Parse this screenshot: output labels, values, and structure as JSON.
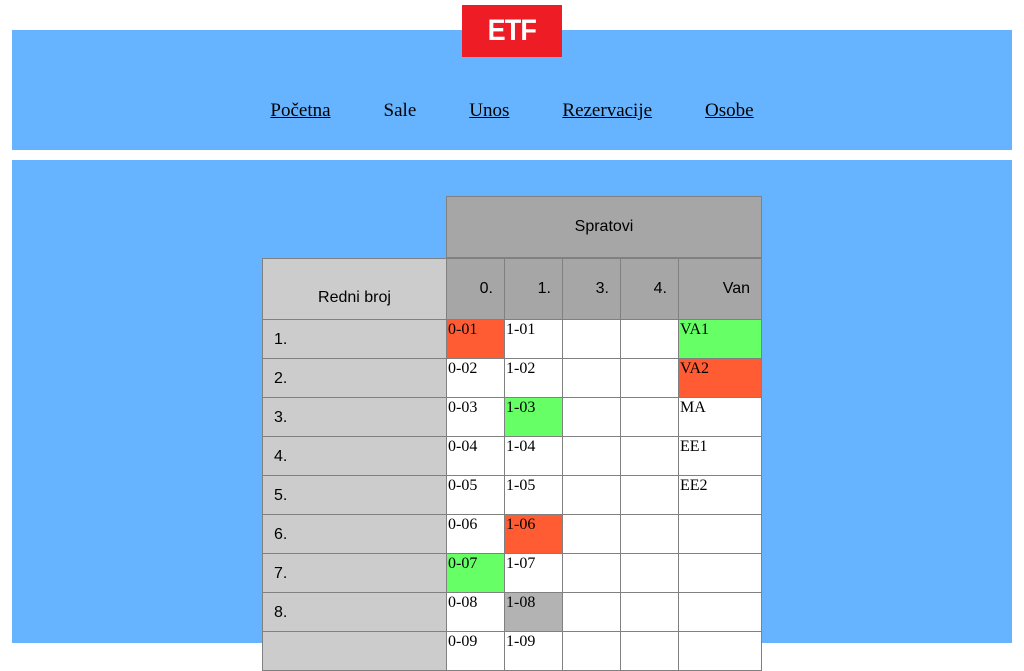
{
  "logo": {
    "text": "ETF",
    "color": "#ee1c25"
  },
  "nav": {
    "items": [
      {
        "label": "Početna",
        "link": true
      },
      {
        "label": "Sale",
        "link": false
      },
      {
        "label": "Unos",
        "link": true
      },
      {
        "label": "Rezervacije",
        "link": true
      },
      {
        "label": "Osobe",
        "link": true
      }
    ]
  },
  "table": {
    "group_header": "Spratovi",
    "row_header": "Redni broj",
    "floors": [
      "0.",
      "1.",
      "3.",
      "4.",
      "Van"
    ],
    "colors": {
      "red": "#ff5c33",
      "green": "#66ff66",
      "gray": "#b3b3b3"
    },
    "rows": [
      {
        "num": "1.",
        "cells": [
          {
            "text": "0-01",
            "status": "red"
          },
          {
            "text": "1-01"
          },
          {
            "text": ""
          },
          {
            "text": ""
          },
          {
            "text": "VA1",
            "status": "green"
          }
        ]
      },
      {
        "num": "2.",
        "cells": [
          {
            "text": "0-02"
          },
          {
            "text": "1-02"
          },
          {
            "text": ""
          },
          {
            "text": ""
          },
          {
            "text": "VA2",
            "status": "red"
          }
        ]
      },
      {
        "num": "3.",
        "cells": [
          {
            "text": "0-03"
          },
          {
            "text": "1-03",
            "status": "green"
          },
          {
            "text": ""
          },
          {
            "text": ""
          },
          {
            "text": "MA"
          }
        ]
      },
      {
        "num": "4.",
        "cells": [
          {
            "text": "0-04"
          },
          {
            "text": "1-04"
          },
          {
            "text": ""
          },
          {
            "text": ""
          },
          {
            "text": "EE1"
          }
        ]
      },
      {
        "num": "5.",
        "cells": [
          {
            "text": "0-05"
          },
          {
            "text": "1-05"
          },
          {
            "text": ""
          },
          {
            "text": ""
          },
          {
            "text": "EE2"
          }
        ]
      },
      {
        "num": "6.",
        "cells": [
          {
            "text": "0-06"
          },
          {
            "text": "1-06",
            "status": "red"
          },
          {
            "text": ""
          },
          {
            "text": ""
          },
          {
            "text": ""
          }
        ]
      },
      {
        "num": "7.",
        "cells": [
          {
            "text": "0-07",
            "status": "green"
          },
          {
            "text": "1-07"
          },
          {
            "text": ""
          },
          {
            "text": ""
          },
          {
            "text": ""
          }
        ]
      },
      {
        "num": "8.",
        "cells": [
          {
            "text": "0-08"
          },
          {
            "text": "1-08",
            "status": "gray"
          },
          {
            "text": ""
          },
          {
            "text": ""
          },
          {
            "text": ""
          }
        ]
      },
      {
        "num": "",
        "cells": [
          {
            "text": "0-09"
          },
          {
            "text": "1-09"
          },
          {
            "text": ""
          },
          {
            "text": ""
          },
          {
            "text": ""
          }
        ]
      }
    ]
  }
}
